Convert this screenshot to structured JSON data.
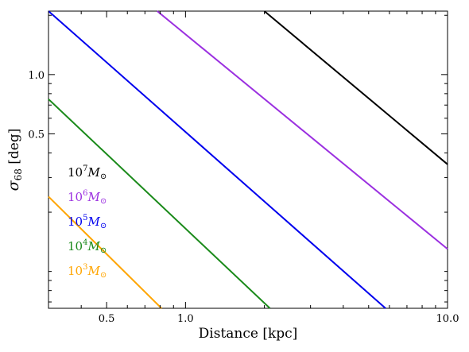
{
  "chart_data": {
    "type": "line",
    "title": "",
    "xlabel": "Distance [kpc]",
    "ylabel_symbol": "σ",
    "ylabel_sub": "68",
    "ylabel_unit": " [deg]",
    "xscale": "log",
    "yscale": "log",
    "xlim": [
      0.3,
      10.0
    ],
    "ylim": [
      0.065,
      2.1
    ],
    "x_ticks": [
      {
        "value": 0.5,
        "label": "0.5"
      },
      {
        "value": 1.0,
        "label": "1.0"
      },
      {
        "value": 10.0,
        "label": "10.0"
      }
    ],
    "y_ticks": [
      {
        "value": 0.5,
        "label": "0.5"
      },
      {
        "value": 1.0,
        "label": "1.0"
      }
    ],
    "grid": false,
    "legend_position": "lower-left",
    "series": [
      {
        "name_base": "10",
        "name_exp": "7",
        "name_mass": "M",
        "name_sub": "⊙",
        "color": "#000000",
        "x": [
          2.0,
          10.0
        ],
        "y": [
          2.1,
          0.35
        ]
      },
      {
        "name_base": "10",
        "name_exp": "6",
        "name_mass": "M",
        "name_sub": "⊙",
        "color": "#9b30e0",
        "x": [
          0.78,
          10.0
        ],
        "y": [
          2.1,
          0.13
        ]
      },
      {
        "name_base": "10",
        "name_exp": "5",
        "name_mass": "M",
        "name_sub": "⊙",
        "color": "#0000ee",
        "x": [
          0.3,
          5.8
        ],
        "y": [
          2.1,
          0.065
        ]
      },
      {
        "name_base": "10",
        "name_exp": "4",
        "name_mass": "M",
        "name_sub": "⊙",
        "color": "#1a8a1a",
        "x": [
          0.3,
          2.1
        ],
        "y": [
          0.75,
          0.065
        ]
      },
      {
        "name_base": "10",
        "name_exp": "3",
        "name_mass": "M",
        "name_sub": "⊙",
        "color": "#ffa500",
        "x": [
          0.3,
          0.81
        ],
        "y": [
          0.24,
          0.065
        ]
      }
    ]
  }
}
